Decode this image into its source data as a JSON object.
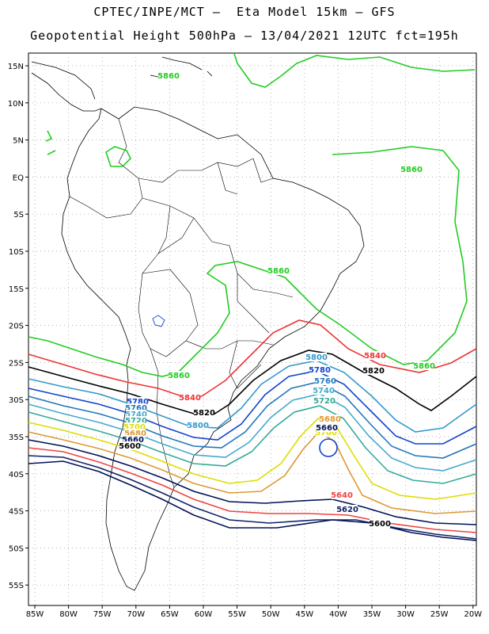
{
  "header": {
    "line1": "CPTEC/INPE/MCT –  Eta Model 15km – GFS",
    "line2": "Geopotential Height 500hPa – 13/04/2021 12UTC fct=195h"
  },
  "map": {
    "lon_ticks": [
      "85W",
      "80W",
      "75W",
      "70W",
      "65W",
      "60W",
      "55W",
      "50W",
      "45W",
      "40W",
      "35W",
      "30W",
      "25W",
      "20W"
    ],
    "lat_ticks": [
      "15N",
      "10N",
      "5N",
      "EQ",
      "5S",
      "10S",
      "15S",
      "20S",
      "25S",
      "30S",
      "35S",
      "40S",
      "45S",
      "50S",
      "55S"
    ],
    "contour_colors": {
      "5860": "#22cc22",
      "5840": "#ee3333",
      "5820": "#000000",
      "5800": "#3399cc",
      "5780": "#1144cc",
      "5760": "#2277bb",
      "5740": "#44aacc",
      "5720": "#33aa99",
      "5700": "#dddd00",
      "5680": "#dd9933",
      "5660": "#001155",
      "5640": "#ee4444",
      "5620": "#112266"
    },
    "labels": [
      {
        "id": "g1",
        "text": "5860"
      },
      {
        "id": "g2",
        "text": "5860"
      },
      {
        "id": "g3",
        "text": "5860"
      },
      {
        "id": "g4",
        "text": "5860"
      },
      {
        "id": "g5",
        "text": "5860"
      },
      {
        "id": "r1",
        "text": "5840"
      },
      {
        "id": "r2",
        "text": "5840"
      },
      {
        "id": "k1",
        "text": "5820"
      },
      {
        "id": "k2",
        "text": "5820"
      },
      {
        "id": "c1",
        "text": "5800"
      },
      {
        "id": "c2",
        "text": "5800"
      },
      {
        "id": "c3",
        "text": "5780"
      },
      {
        "id": "c4",
        "text": "5780"
      },
      {
        "id": "c5",
        "text": "5760"
      },
      {
        "id": "c6",
        "text": "5760"
      },
      {
        "id": "c7",
        "text": "5740"
      },
      {
        "id": "c8",
        "text": "5740"
      },
      {
        "id": "c9",
        "text": "5720"
      },
      {
        "id": "c10",
        "text": "5720"
      },
      {
        "id": "c11",
        "text": "5700"
      },
      {
        "id": "c12",
        "text": "5700"
      },
      {
        "id": "c13",
        "text": "5680"
      },
      {
        "id": "c14",
        "text": "5680"
      },
      {
        "id": "c15",
        "text": "5660"
      },
      {
        "id": "c16",
        "text": "5660"
      },
      {
        "id": "c17",
        "text": "5640"
      },
      {
        "id": "c18",
        "text": "5620"
      },
      {
        "id": "c19",
        "text": "5600"
      },
      {
        "id": "c20",
        "text": "5600"
      }
    ]
  }
}
